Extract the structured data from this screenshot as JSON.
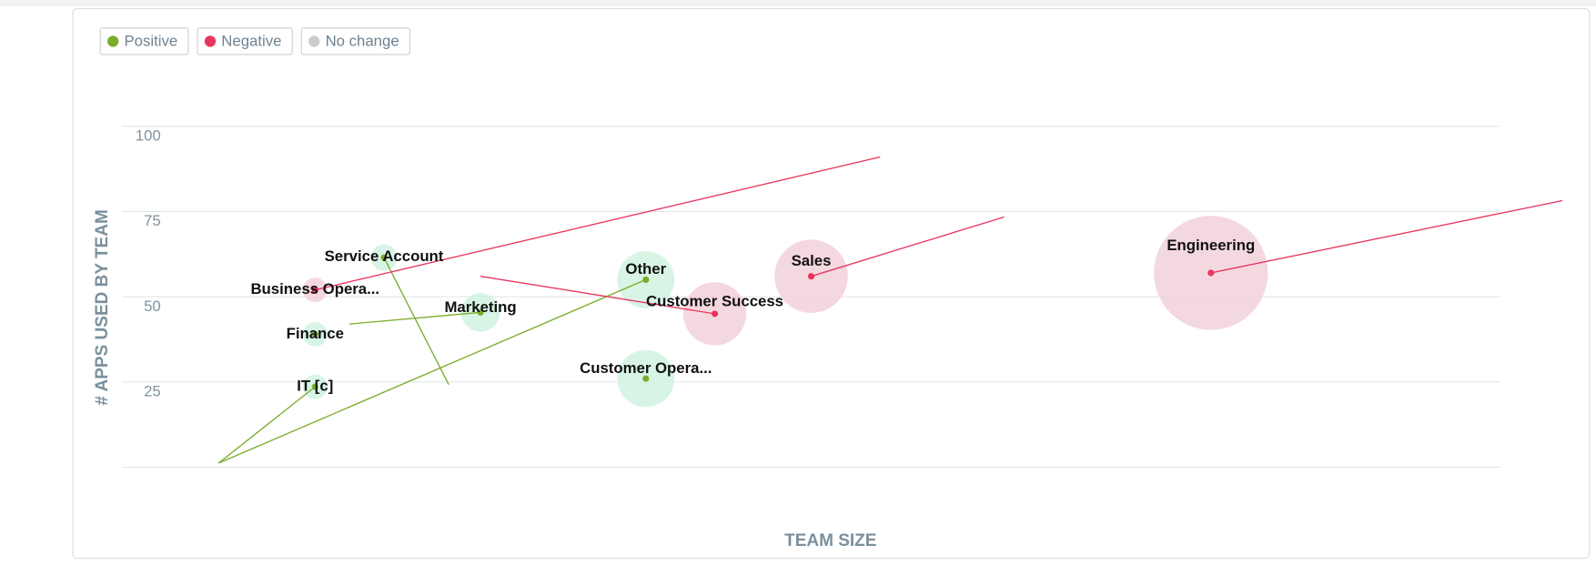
{
  "chart_data": {
    "type": "bubble",
    "x_label": "TEAM SIZE",
    "y_label": "# APPS USED BY TEAM",
    "xlim": [
      0,
      100
    ],
    "ylim": [
      0,
      100
    ],
    "yticks": [
      25,
      50,
      75,
      100
    ],
    "grid": true,
    "legend_position": "top-left",
    "series": [
      {
        "name": "Positive",
        "color": "#7aac2a",
        "bubble_color": "#d3f3e2",
        "labels": [
          "IT [c]",
          "Finance",
          "Service Account",
          "Marketing",
          "Other",
          "Customer Opera..."
        ],
        "x": [
          14,
          14,
          19,
          26,
          38,
          38
        ],
        "values": [
          23.6,
          39,
          61.5,
          45.4,
          55,
          26
        ],
        "sizes": [
          12,
          12,
          13,
          19,
          28,
          28
        ],
        "prev_x": [
          7,
          null,
          23.7,
          16.5,
          7,
          null
        ],
        "prev_y": [
          1.2,
          null,
          24.2,
          42,
          1.2,
          null
        ]
      },
      {
        "name": "Negative",
        "color": "#e8365e",
        "bubble_color": "#f3d4dc",
        "labels": [
          "Business Opera...",
          "Customer Success",
          "Sales",
          "Engineering"
        ],
        "x": [
          14,
          43,
          50,
          79
        ],
        "values": [
          52,
          45,
          56,
          57
        ],
        "sizes": [
          12,
          31,
          36,
          56
        ],
        "prev_x": [
          55,
          26,
          64,
          104.5
        ],
        "prev_y": [
          91,
          56,
          73.4,
          78.2
        ]
      },
      {
        "name": "No change",
        "color": "#cccccc",
        "bubble_color": "#eeeeee",
        "labels": [],
        "x": [],
        "values": [],
        "sizes": [],
        "prev_x": [],
        "prev_y": []
      }
    ]
  }
}
